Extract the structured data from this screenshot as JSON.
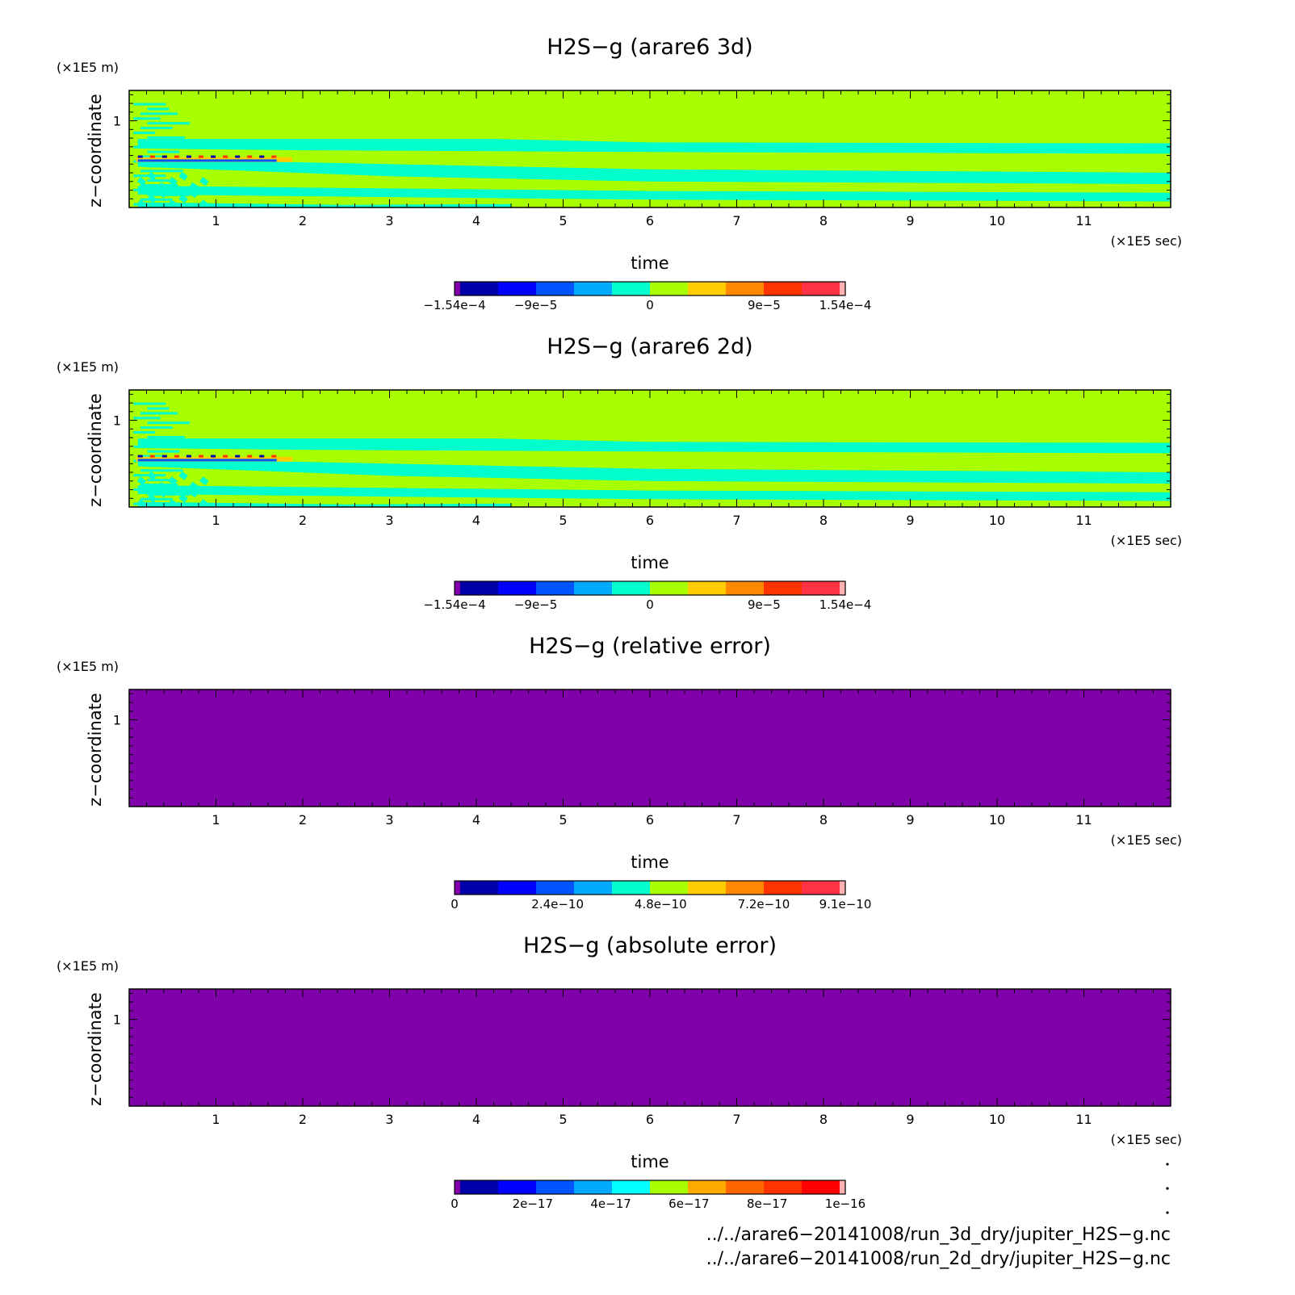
{
  "colors": {
    "plot_bg": "#a8ff00",
    "band": "#00ffcc",
    "low": "#8000aa",
    "axis": "#000000"
  },
  "chart_data": [
    {
      "type": "heatmap",
      "title": "H2S−g (arare6 3d)",
      "xlabel": "time",
      "ylabel": "z−coordinate",
      "x_unit": "(×1E5 sec)",
      "y_unit": "(×1E5 m)",
      "xlim": [
        0,
        12
      ],
      "ylim": [
        0,
        1.35
      ],
      "xticks": [
        "1",
        "2",
        "3",
        "4",
        "5",
        "6",
        "7",
        "8",
        "9",
        "10",
        "11"
      ],
      "yticks": [
        "1"
      ],
      "fill": "field",
      "colorbar": {
        "colors": [
          "#8000aa",
          "#0000aa",
          "#0000ff",
          "#0055ff",
          "#00aaff",
          "#00ffcc",
          "#a8ff00",
          "#ffcc00",
          "#ff8800",
          "#ff3300",
          "#ff3344",
          "#ffb0b0"
        ],
        "labels": [
          "−1.54e−4",
          "−9e−5",
          "0",
          "9e−5",
          "1.54e−4"
        ],
        "label_positions": [
          -0.000154,
          -9e-05,
          0,
          9e-05,
          0.000154
        ],
        "range": [
          -0.000154,
          0.000154
        ]
      }
    },
    {
      "type": "heatmap",
      "title": "H2S−g (arare6 2d)",
      "xlabel": "time",
      "ylabel": "z−coordinate",
      "x_unit": "(×1E5 sec)",
      "y_unit": "(×1E5 m)",
      "xlim": [
        0,
        12
      ],
      "ylim": [
        0,
        1.35
      ],
      "xticks": [
        "1",
        "2",
        "3",
        "4",
        "5",
        "6",
        "7",
        "8",
        "9",
        "10",
        "11"
      ],
      "yticks": [
        "1"
      ],
      "fill": "field",
      "colorbar": {
        "colors": [
          "#8000aa",
          "#0000aa",
          "#0000ff",
          "#0055ff",
          "#00aaff",
          "#00ffcc",
          "#a8ff00",
          "#ffcc00",
          "#ff8800",
          "#ff3300",
          "#ff3344",
          "#ffb0b0"
        ],
        "labels": [
          "−1.54e−4",
          "−9e−5",
          "0",
          "9e−5",
          "1.54e−4"
        ],
        "label_positions": [
          -0.000154,
          -9e-05,
          0,
          9e-05,
          0.000154
        ],
        "range": [
          -0.000154,
          0.000154
        ]
      }
    },
    {
      "type": "heatmap",
      "title": "H2S−g (relative error)",
      "xlabel": "time",
      "ylabel": "z−coordinate",
      "x_unit": "(×1E5 sec)",
      "y_unit": "(×1E5 m)",
      "xlim": [
        0,
        12
      ],
      "ylim": [
        0,
        1.35
      ],
      "xticks": [
        "1",
        "2",
        "3",
        "4",
        "5",
        "6",
        "7",
        "8",
        "9",
        "10",
        "11"
      ],
      "yticks": [
        "1"
      ],
      "fill": "uniform",
      "colorbar": {
        "colors": [
          "#8000aa",
          "#0000aa",
          "#0000ff",
          "#0055ff",
          "#00aaff",
          "#00ffcc",
          "#a8ff00",
          "#ffcc00",
          "#ff8800",
          "#ff3300",
          "#ff3344",
          "#ffb0b0"
        ],
        "labels": [
          "0",
          "2.4e−10",
          "4.8e−10",
          "7.2e−10",
          "9.1e−10"
        ],
        "label_positions": [
          0,
          2.4e-10,
          4.8e-10,
          7.2e-10,
          9.1e-10
        ],
        "range": [
          0,
          9.1e-10
        ]
      }
    },
    {
      "type": "heatmap",
      "title": "H2S−g (absolute error)",
      "xlabel": "time",
      "ylabel": "z−coordinate",
      "x_unit": "(×1E5 sec)",
      "y_unit": "(×1E5 m)",
      "xlim": [
        0,
        12
      ],
      "ylim": [
        0,
        1.35
      ],
      "xticks": [
        "1",
        "2",
        "3",
        "4",
        "5",
        "6",
        "7",
        "8",
        "9",
        "10",
        "11"
      ],
      "yticks": [
        "1"
      ],
      "fill": "uniform",
      "colorbar": {
        "colors": [
          "#8000aa",
          "#0000aa",
          "#0000ff",
          "#0055ff",
          "#00aaff",
          "#00ffff",
          "#a8ff00",
          "#ffaa00",
          "#ff6600",
          "#ff3300",
          "#ff0000",
          "#ffb0b0"
        ],
        "labels": [
          "0",
          "2e−17",
          "4e−17",
          "6e−17",
          "8e−17",
          "1e−16"
        ],
        "label_positions": [
          0,
          2e-17,
          4e-17,
          6e-17,
          8e-17,
          1e-16
        ],
        "range": [
          0,
          1e-16
        ]
      }
    }
  ],
  "footer": {
    "path1": "../../arare6−20141008/run_3d_dry/jupiter_H2S−g.nc",
    "path2": "../../arare6−20141008/run_2d_dry/jupiter_H2S−g.nc"
  }
}
